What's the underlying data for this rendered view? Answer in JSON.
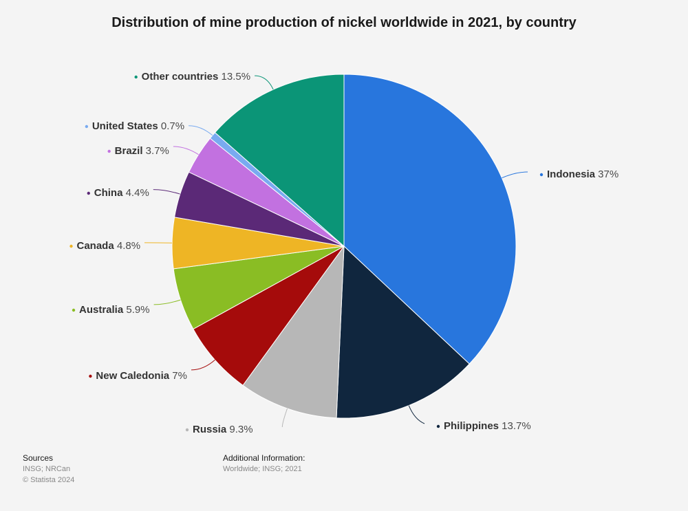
{
  "title": "Distribution of mine production of nickel worldwide in 2021, by country",
  "sources": {
    "heading": "Sources",
    "text": "INSG; NRCan",
    "copyright": "© Statista 2024"
  },
  "additional_info": {
    "heading": "Additional Information:",
    "text": "Worldwide; INSG; 2021"
  },
  "chart_data": {
    "type": "pie",
    "title": "Distribution of mine production of nickel worldwide in 2021, by country",
    "slices": [
      {
        "label": "Indonesia",
        "value": 37,
        "display": "37%",
        "color": "#2876dd"
      },
      {
        "label": "Philippines",
        "value": 13.7,
        "display": "13.7%",
        "color": "#10263e"
      },
      {
        "label": "Russia",
        "value": 9.3,
        "display": "9.3%",
        "color": "#b7b7b7"
      },
      {
        "label": "New Caledonia",
        "value": 7,
        "display": "7%",
        "color": "#a50b0b"
      },
      {
        "label": "Australia",
        "value": 5.9,
        "display": "5.9%",
        "color": "#8abd24"
      },
      {
        "label": "Canada",
        "value": 4.8,
        "display": "4.8%",
        "color": "#eeb525"
      },
      {
        "label": "China",
        "value": 4.4,
        "display": "4.4%",
        "color": "#5b2977"
      },
      {
        "label": "Brazil",
        "value": 3.7,
        "display": "3.7%",
        "color": "#c271e0"
      },
      {
        "label": "United States",
        "value": 0.7,
        "display": "0.7%",
        "color": "#79aaf0"
      },
      {
        "label": "Other countries",
        "value": 13.5,
        "display": "13.5%",
        "color": "#0b9577"
      }
    ],
    "start_angle_deg": 0,
    "direction": "clockwise",
    "legend": "none"
  }
}
